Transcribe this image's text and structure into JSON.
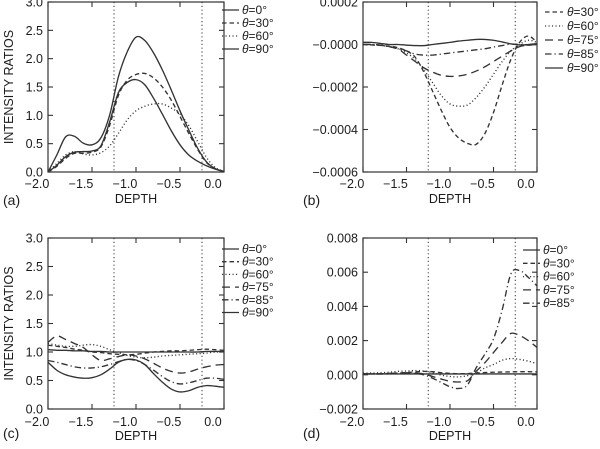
{
  "figure": {
    "background": "#ffffff",
    "line_color": "#333333",
    "text_color": "#1c1c1c",
    "corner_labels": [
      "(a)",
      "(b)",
      "(c)",
      "(d)"
    ]
  },
  "chart_data": [
    {
      "type": "line",
      "panel_label": "(a)",
      "xlabel": "DEPTH",
      "ylabel": "INTENSITY RATIOS",
      "xlim": [
        -2.0,
        0.0
      ],
      "ylim": [
        0.0,
        3.0
      ],
      "xticks": [
        -2.0,
        -1.5,
        -1.0,
        -0.5,
        0.0
      ],
      "xtick_labels": [
        "−2.0",
        "−1.5",
        "−1.0",
        "−0.5",
        "0.0"
      ],
      "yticks": [
        0.0,
        0.5,
        1.0,
        1.5,
        2.0,
        2.5,
        3.0
      ],
      "ytick_labels": [
        "0.0",
        "0.5",
        "1.0",
        "1.5",
        "2.0",
        "2.5",
        "3.0"
      ],
      "vlines": [
        -1.25,
        -0.25
      ],
      "legend_position": "outside-right-top",
      "x": [
        -2.0,
        -1.9,
        -1.8,
        -1.7,
        -1.6,
        -1.5,
        -1.4,
        -1.3,
        -1.2,
        -1.1,
        -1.0,
        -0.9,
        -0.8,
        -0.7,
        -0.6,
        -0.5,
        -0.4,
        -0.3,
        -0.2,
        -0.1,
        0.0
      ],
      "series": [
        {
          "name": "θ=0°",
          "linestyle": "solid",
          "values": [
            0,
            0.12,
            0.27,
            0.35,
            0.36,
            0.37,
            0.46,
            0.88,
            1.4,
            1.58,
            1.63,
            1.54,
            1.3,
            1.02,
            0.73,
            0.48,
            0.3,
            0.19,
            0.11,
            0.05,
            0.01
          ]
        },
        {
          "name": "θ=30°",
          "linestyle": "dash",
          "values": [
            0,
            0.1,
            0.24,
            0.33,
            0.33,
            0.35,
            0.44,
            0.82,
            1.35,
            1.62,
            1.72,
            1.74,
            1.66,
            1.5,
            1.27,
            0.98,
            0.68,
            0.4,
            0.17,
            0.06,
            0.01
          ]
        },
        {
          "name": "θ=60°",
          "linestyle": "dot",
          "values": [
            0,
            0.15,
            0.3,
            0.36,
            0.32,
            0.3,
            0.34,
            0.46,
            0.68,
            0.92,
            1.08,
            1.16,
            1.2,
            1.2,
            1.13,
            1.02,
            0.82,
            0.54,
            0.26,
            0.08,
            0.01
          ]
        },
        {
          "name": "θ=90°",
          "linestyle": "solid",
          "values": [
            0,
            0.3,
            0.62,
            0.63,
            0.51,
            0.48,
            0.6,
            1.0,
            1.68,
            2.12,
            2.38,
            2.32,
            2.1,
            1.8,
            1.45,
            1.08,
            0.74,
            0.42,
            0.18,
            0.06,
            0.01
          ]
        }
      ]
    },
    {
      "type": "line",
      "panel_label": "(b)",
      "xlabel": "DEPTH",
      "ylabel": "",
      "xlim": [
        -2.0,
        0.0
      ],
      "ylim": [
        -0.0006,
        0.0002
      ],
      "xticks": [
        -2.0,
        -1.5,
        -1.0,
        -0.5,
        0.0
      ],
      "xtick_labels": [
        "−2.0",
        "−1.5",
        "−1.0",
        "−0.5",
        "0.0"
      ],
      "yticks": [
        0.0002,
        0.0,
        -0.0002,
        -0.0004,
        -0.0006
      ],
      "ytick_labels": [
        "0.0002",
        "−0.0000",
        "−0.0002",
        "−0.0004",
        "−0.0006"
      ],
      "vlines": [
        -1.25,
        -0.25
      ],
      "legend_position": "outside-right-top",
      "x": [
        -2.0,
        -1.9,
        -1.8,
        -1.7,
        -1.6,
        -1.5,
        -1.4,
        -1.3,
        -1.2,
        -1.1,
        -1.0,
        -0.9,
        -0.8,
        -0.7,
        -0.6,
        -0.5,
        -0.4,
        -0.3,
        -0.2,
        -0.1,
        0.0
      ],
      "series": [
        {
          "name": "θ=30°",
          "linestyle": "dash",
          "values": [
            0,
            -2e-06,
            -4e-06,
            -8e-06,
            -1.5e-05,
            -3e-05,
            -6e-05,
            -0.00013,
            -0.00022,
            -0.00031,
            -0.00039,
            -0.00044,
            -0.000465,
            -0.00047,
            -0.00042,
            -0.00032,
            -0.00019,
            -7e-05,
            1e-05,
            4e-05,
            1e-05
          ]
        },
        {
          "name": "θ=60°",
          "linestyle": "dot",
          "values": [
            0,
            -2e-06,
            -4e-06,
            -1e-05,
            -2e-05,
            -4e-05,
            -7e-05,
            -0.00012,
            -0.00018,
            -0.00024,
            -0.00028,
            -0.00029,
            -0.000285,
            -0.00025,
            -0.0002,
            -0.00014,
            -8e-05,
            -3e-05,
            0,
            2e-05,
            1e-05
          ]
        },
        {
          "name": "θ=75°",
          "linestyle": "longdash",
          "values": [
            0,
            0,
            -3e-06,
            -1e-05,
            -2e-05,
            -5e-05,
            -8e-05,
            -0.00011,
            -0.00013,
            -0.000145,
            -0.00015,
            -0.000148,
            -0.00014,
            -0.000125,
            -0.000105,
            -8e-05,
            -5.5e-05,
            -3e-05,
            -1e-05,
            -3e-06,
            0
          ]
        },
        {
          "name": "θ=85°",
          "linestyle": "dashdot",
          "values": [
            0,
            0,
            -3e-06,
            -1e-05,
            -2e-05,
            -3e-05,
            -4.5e-05,
            -5e-05,
            -5e-05,
            -4.5e-05,
            -4e-05,
            -3.5e-05,
            -3e-05,
            -2.5e-05,
            -2e-05,
            -1.2e-05,
            -5e-06,
            2e-06,
            0,
            -3e-06,
            0
          ]
        },
        {
          "name": "θ=90°",
          "linestyle": "solid",
          "values": [
            1e-05,
            1e-05,
            5e-06,
            0,
            0,
            -3e-06,
            -5e-06,
            -5e-06,
            0,
            5e-06,
            1e-05,
            1.6e-05,
            2e-05,
            2.4e-05,
            2.4e-05,
            2e-05,
            1.2e-05,
            3e-06,
            -2e-06,
            0,
            4e-06
          ]
        }
      ]
    },
    {
      "type": "line",
      "panel_label": "(c)",
      "xlabel": "DEPTH",
      "ylabel": "INTENSITY RATIOS",
      "xlim": [
        -2.0,
        0.0
      ],
      "ylim": [
        0.0,
        3.0
      ],
      "xticks": [
        -2.0,
        -1.5,
        -1.0,
        -0.5,
        0.0
      ],
      "xtick_labels": [
        "−2.0",
        "−1.5",
        "−1.0",
        "−0.5",
        "0.0"
      ],
      "yticks": [
        0.0,
        0.5,
        1.0,
        1.5,
        2.0,
        2.5,
        3.0
      ],
      "ytick_labels": [
        "0.0",
        "0.5",
        "1.0",
        "1.5",
        "2.0",
        "2.5",
        "3.0"
      ],
      "vlines": [
        -1.25,
        -0.25
      ],
      "legend_position": "outside-right-top",
      "x": [
        -2.0,
        -1.9,
        -1.8,
        -1.7,
        -1.6,
        -1.5,
        -1.4,
        -1.3,
        -1.2,
        -1.1,
        -1.0,
        -0.9,
        -0.8,
        -0.7,
        -0.6,
        -0.5,
        -0.4,
        -0.3,
        -0.2,
        -0.1,
        0.0
      ],
      "series": [
        {
          "name": "θ=0°",
          "linestyle": "solid",
          "values": [
            0.82,
            0.68,
            0.6,
            0.56,
            0.54,
            0.55,
            0.6,
            0.7,
            0.82,
            0.87,
            0.86,
            0.78,
            0.62,
            0.47,
            0.35,
            0.3,
            0.32,
            0.38,
            0.41,
            0.4,
            0.38
          ]
        },
        {
          "name": "θ=30°",
          "linestyle": "dash",
          "values": [
            1.12,
            1.1,
            1.08,
            1.05,
            1.03,
            1.0,
            0.99,
            0.97,
            0.96,
            0.95,
            0.96,
            0.98,
            1.0,
            1.01,
            1.02,
            1.02,
            1.03,
            1.04,
            1.05,
            1.04,
            1.03
          ]
        },
        {
          "name": "θ=60°",
          "linestyle": "dot",
          "values": [
            1.15,
            1.12,
            1.1,
            1.1,
            1.12,
            1.13,
            1.1,
            1.04,
            0.99,
            0.94,
            0.91,
            0.9,
            0.91,
            0.93,
            0.94,
            0.95,
            0.96,
            0.97,
            0.98,
            1.0,
            1.0
          ]
        },
        {
          "name": "θ=75°",
          "linestyle": "longdash",
          "values": [
            1.17,
            1.28,
            1.22,
            1.15,
            1.08,
            0.95,
            0.85,
            0.88,
            0.92,
            0.95,
            0.93,
            0.88,
            0.8,
            0.72,
            0.66,
            0.63,
            0.65,
            0.7,
            0.74,
            0.77,
            0.78
          ]
        },
        {
          "name": "θ=85°",
          "linestyle": "dashdot",
          "values": [
            0.85,
            0.82,
            0.78,
            0.74,
            0.72,
            0.72,
            0.74,
            0.78,
            0.83,
            0.87,
            0.85,
            0.78,
            0.68,
            0.57,
            0.48,
            0.44,
            0.46,
            0.5,
            0.54,
            0.54,
            0.52
          ]
        },
        {
          "name": "θ=90°",
          "linestyle": "solid",
          "values": [
            1.04,
            1.03,
            1.03,
            1.02,
            1.02,
            1.01,
            1.01,
            1.0,
            1.0,
            1.0,
            1.0,
            1.0,
            1.0,
            1.0,
            1.0,
            1.0,
            1.0,
            1.0,
            1.01,
            1.01,
            1.01
          ]
        }
      ]
    },
    {
      "type": "line",
      "panel_label": "(d)",
      "xlabel": "DEPTH",
      "ylabel": "",
      "xlim": [
        -2.0,
        0.0
      ],
      "ylim": [
        -0.002,
        0.008
      ],
      "xticks": [
        -2.0,
        -1.5,
        -1.0,
        -0.5,
        0.0
      ],
      "xtick_labels": [
        "−2.0",
        "−1.5",
        "−1.0",
        "−0.5",
        "0.0"
      ],
      "yticks": [
        0.008,
        0.006,
        0.004,
        0.002,
        0.0,
        -0.002
      ],
      "ytick_labels": [
        "0.008",
        "0.006",
        "0.004",
        "0.002",
        "0.000",
        "−0.002"
      ],
      "vlines": [
        -1.25,
        -0.25
      ],
      "legend_position": "outside-right-top",
      "x": [
        -2.0,
        -1.9,
        -1.8,
        -1.7,
        -1.6,
        -1.5,
        -1.4,
        -1.3,
        -1.2,
        -1.1,
        -1.0,
        -0.9,
        -0.8,
        -0.7,
        -0.6,
        -0.5,
        -0.4,
        -0.3,
        -0.2,
        -0.1,
        0.0
      ],
      "series": [
        {
          "name": "θ=0°",
          "linestyle": "solid",
          "values": [
            5e-05,
            5e-05,
            5e-05,
            5e-05,
            5e-05,
            5e-05,
            5e-05,
            5e-05,
            5e-05,
            5e-05,
            5e-05,
            5e-05,
            5e-05,
            5e-05,
            5e-05,
            5e-05,
            5e-05,
            5e-05,
            5e-05,
            5e-05,
            5e-05
          ]
        },
        {
          "name": "θ=30°",
          "linestyle": "dash",
          "values": [
            5e-05,
            5e-05,
            6e-05,
            8e-05,
            0.0001,
            0.00013,
            0.00017,
            0.0002,
            0.00018,
            0.00012,
            8e-05,
            6e-05,
            7e-05,
            0.0001,
            0.00013,
            0.00015,
            0.00016,
            0.00017,
            0.00018,
            0.00018,
            0.00017
          ]
        },
        {
          "name": "θ=60°",
          "linestyle": "dot",
          "values": [
            0.0001,
            0.0001,
            0.00012,
            0.00015,
            0.0002,
            0.00022,
            0.00025,
            0.00022,
            0.00012,
            -2e-05,
            -0.0001,
            -0.00012,
            -5e-05,
            0.0001,
            0.0004,
            0.0006,
            0.00085,
            0.00095,
            0.0009,
            0.0008,
            0.00065
          ]
        },
        {
          "name": "θ=75°",
          "linestyle": "longdash",
          "values": [
            5e-05,
            5e-05,
            5e-05,
            8e-05,
            0.0001,
            0.00012,
            0.0001,
            5e-05,
            -0.0001,
            -0.00025,
            -0.00038,
            -0.00042,
            -0.00035,
            0.0002,
            0.0007,
            0.0013,
            0.0019,
            0.00242,
            0.0023,
            0.002,
            0.0016
          ]
        },
        {
          "name": "θ=85°",
          "linestyle": "dashdot",
          "values": [
            5e-05,
            5e-05,
            5e-05,
            5e-05,
            8e-05,
            0.0001,
            8e-05,
            0,
            -0.0002,
            -0.00045,
            -0.0007,
            -0.0008,
            -0.0006,
            0.0004,
            0.0012,
            0.0021,
            0.0038,
            0.0059,
            0.0061,
            0.0057,
            0.0052
          ]
        }
      ]
    }
  ]
}
